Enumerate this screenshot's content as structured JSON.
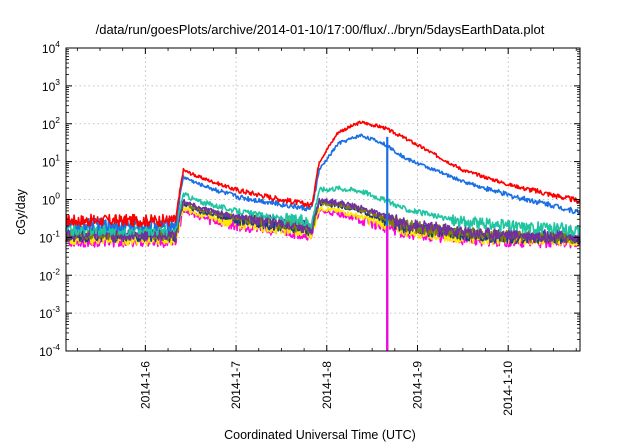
{
  "chart_data": {
    "type": "line",
    "title": "/data/run/goesPlots/archive/2014-01-10/17:00/flux/../bryn/5daysEarthData.plot",
    "xlabel": "Coordinated Universal Time (UTC)",
    "ylabel": "cGy/day",
    "y_scale": "log",
    "ylim": [
      0.0001,
      10000
    ],
    "xlim": [
      "2014-01-05 03:00",
      "2014-01-10 19:00"
    ],
    "grid": true,
    "legend": "none",
    "y_ticks": [
      {
        "base": "10",
        "exp": "-4"
      },
      {
        "base": "10",
        "exp": "-3"
      },
      {
        "base": "10",
        "exp": "-2"
      },
      {
        "base": "10",
        "exp": "-1"
      },
      {
        "base": "10",
        "exp": "0"
      },
      {
        "base": "10",
        "exp": "1"
      },
      {
        "base": "10",
        "exp": "2"
      },
      {
        "base": "10",
        "exp": "3"
      },
      {
        "base": "10",
        "exp": "4"
      }
    ],
    "x_ticks": [
      "2014-1-6",
      "2014-1-7",
      "2014-1-8",
      "2014-1-9",
      "2014-1-10"
    ],
    "x": [
      "2014-01-05 03:00",
      "2014-01-06 08:00",
      "2014-01-06 10:00",
      "2014-01-06 14:00",
      "2014-01-07 00:00",
      "2014-01-07 12:00",
      "2014-01-07 20:00",
      "2014-01-07 22:00",
      "2014-01-08 03:00",
      "2014-01-08 09:00",
      "2014-01-08 15:00",
      "2014-01-08 21:00",
      "2014-01-09 12:00",
      "2014-01-10 00:00",
      "2014-01-10 12:00",
      "2014-01-10 19:00"
    ],
    "series": [
      {
        "color": "#ff0000",
        "values": [
          0.28,
          0.28,
          6.0,
          4.0,
          1.8,
          1.0,
          0.7,
          10.0,
          60,
          110,
          80,
          40,
          6,
          2.5,
          1.3,
          0.9
        ]
      },
      {
        "color": "#1a6fe6",
        "values": [
          0.22,
          0.22,
          4.0,
          2.6,
          1.2,
          0.75,
          0.55,
          6.0,
          30,
          50,
          30,
          12,
          3,
          1.3,
          0.7,
          0.45
        ]
      },
      {
        "color": "#1fc4a0",
        "values": [
          0.16,
          0.16,
          1.4,
          0.9,
          0.5,
          0.32,
          0.25,
          1.8,
          2.0,
          1.7,
          1.0,
          0.55,
          0.25,
          0.2,
          0.17,
          0.16
        ]
      },
      {
        "color": "#7030a0",
        "values": [
          0.12,
          0.12,
          0.9,
          0.6,
          0.35,
          0.25,
          0.18,
          0.95,
          0.85,
          0.6,
          0.38,
          0.22,
          0.14,
          0.12,
          0.11,
          0.1
        ]
      },
      {
        "color": "#808000",
        "values": [
          0.12,
          0.12,
          0.85,
          0.55,
          0.33,
          0.23,
          0.17,
          0.85,
          0.75,
          0.55,
          0.34,
          0.2,
          0.13,
          0.11,
          0.1,
          0.1
        ]
      },
      {
        "color": "#1e3a8a",
        "values": [
          0.11,
          0.11,
          0.8,
          0.5,
          0.3,
          0.21,
          0.16,
          0.8,
          0.7,
          0.5,
          0.3,
          0.18,
          0.12,
          0.1,
          0.1,
          0.09
        ]
      },
      {
        "color": "#ffea00",
        "values": [
          0.09,
          0.09,
          0.6,
          0.4,
          0.25,
          0.17,
          0.13,
          0.6,
          0.5,
          0.35,
          0.24,
          0.15,
          0.1,
          0.09,
          0.085,
          0.08
        ]
      },
      {
        "color": "#ff00e0",
        "values": [
          0.08,
          0.08,
          0.55,
          0.35,
          0.22,
          0.15,
          0.12,
          0.5,
          0.42,
          0.3,
          0.2,
          0.13,
          0.09,
          0.08,
          0.075,
          0.075
        ]
      }
    ],
    "annotations": [
      {
        "type": "vertical_drop",
        "series_index": 1,
        "x": "2014-01-08 16:00",
        "from": 45,
        "to": 0.0001
      },
      {
        "type": "vertical_drop",
        "series_index": 7,
        "x": "2014-01-08 16:00",
        "from": 0.2,
        "to": 0.0001
      }
    ]
  }
}
